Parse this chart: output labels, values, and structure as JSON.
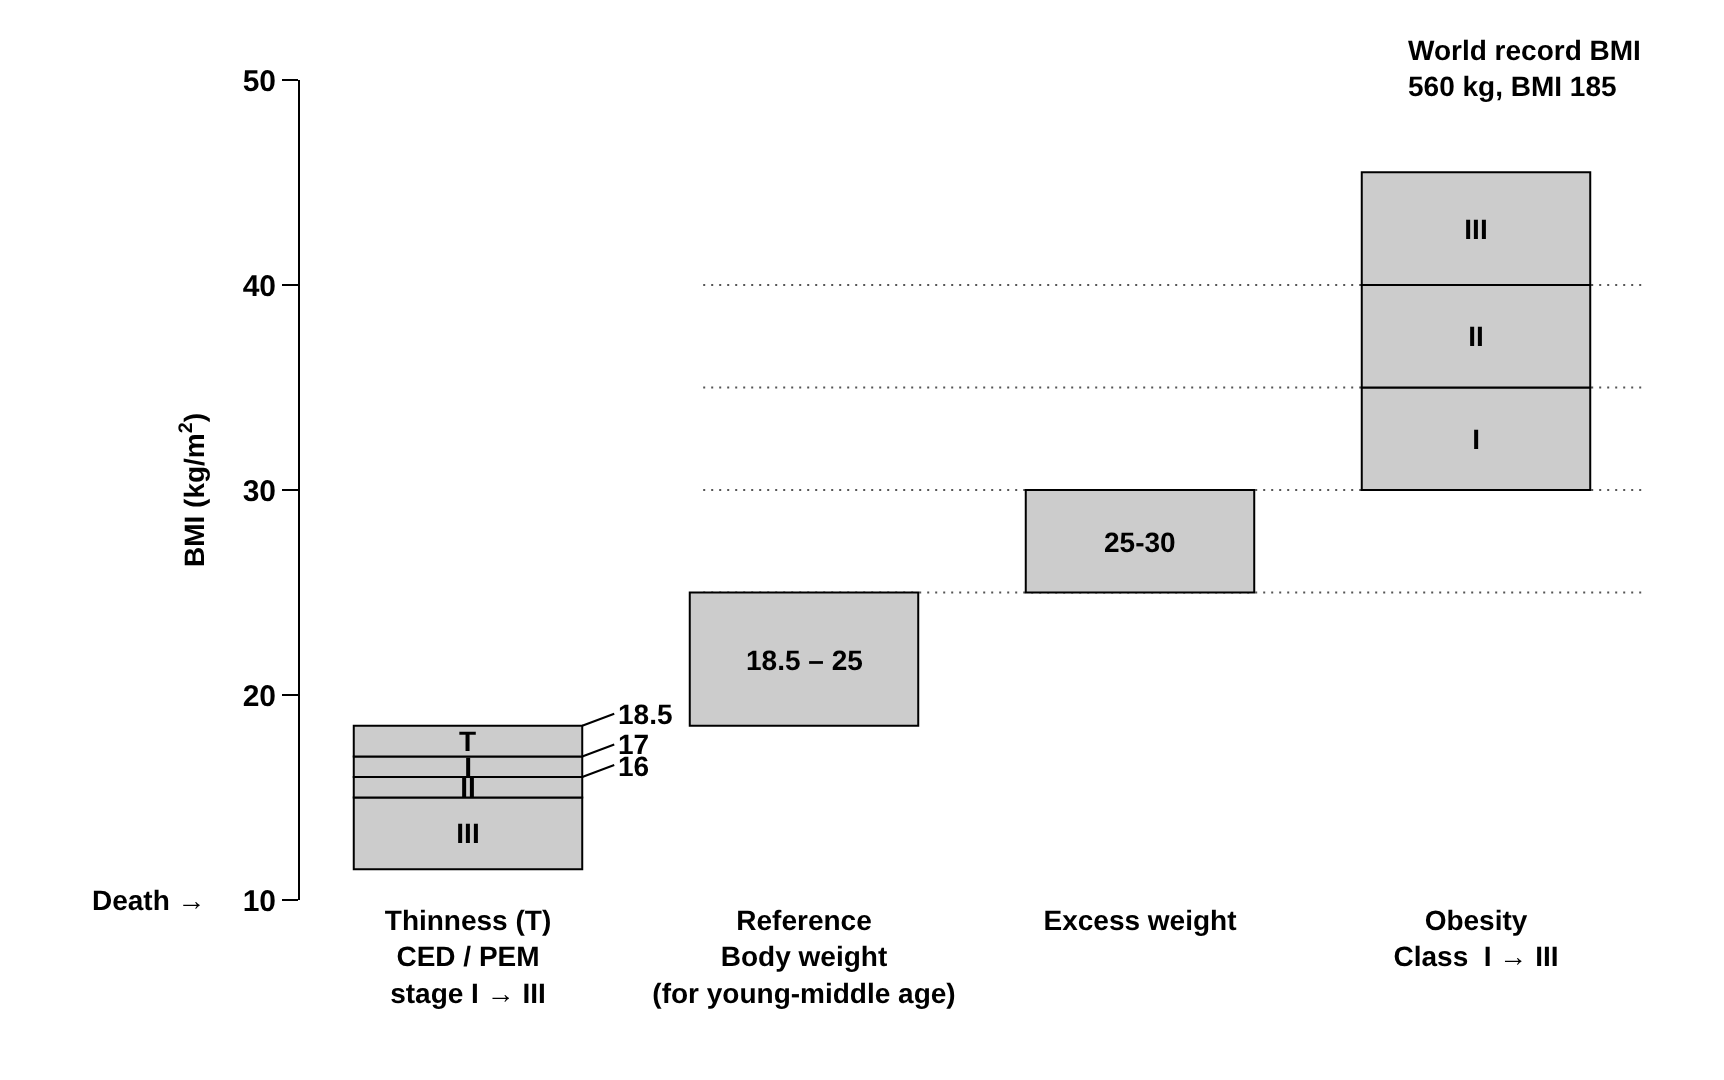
{
  "chart_data": {
    "type": "bar",
    "categories": [
      "Thinness (T)\nCED / PEM\nstage I → III",
      "Reference\nBody weight\n(for young-middle age)",
      "Excess weight",
      "Obesity\nClass  I → III"
    ],
    "series": [
      {
        "color": "#cccccc",
        "base": [
          11.5,
          18.5,
          25,
          30
        ],
        "values": [
          3.5,
          6.5,
          5,
          5
        ],
        "value_labels": [
          "III",
          null,
          null,
          "I"
        ]
      },
      {
        "color": "#cccccc",
        "base": [
          15,
          null,
          null,
          35
        ],
        "values": [
          1,
          null,
          null,
          5
        ],
        "value_labels": [
          "II",
          null,
          null,
          "II"
        ]
      },
      {
        "color": "#cccccc",
        "base": [
          16,
          null,
          null,
          40
        ],
        "values": [
          1,
          null,
          null,
          5.5
        ],
        "value_labels": [
          "I",
          null,
          null,
          "III"
        ]
      },
      {
        "color": "#cccccc",
        "base": [
          17,
          null,
          null,
          null
        ],
        "values": [
          1.5,
          null,
          null,
          null
        ],
        "value_labels": [
          "T",
          null,
          null,
          null
        ]
      }
    ],
    "ylabel": "BMI (kg/m$^{2}$)",
    "ylim": [
      10,
      50
    ],
    "yticks": [
      10,
      20,
      30,
      40,
      50
    ],
    "grid": false,
    "ref_lines": [
      {
        "axis": "y",
        "value": 25,
        "color": "#555555",
        "line_style": "dotted"
      },
      {
        "axis": "y",
        "value": 30,
        "color": "#555555",
        "line_style": "dotted"
      },
      {
        "axis": "y",
        "value": 35,
        "color": "#555555",
        "line_style": "dotted"
      },
      {
        "axis": "y",
        "value": 40,
        "color": "#555555",
        "line_style": "dotted"
      }
    ],
    "annotations": [
      "18.5",
      "17",
      "16",
      "Death →",
      "18.5 – 25",
      "25-30",
      "World record BMI\n560 kg, BMI 185"
    ]
  }
}
